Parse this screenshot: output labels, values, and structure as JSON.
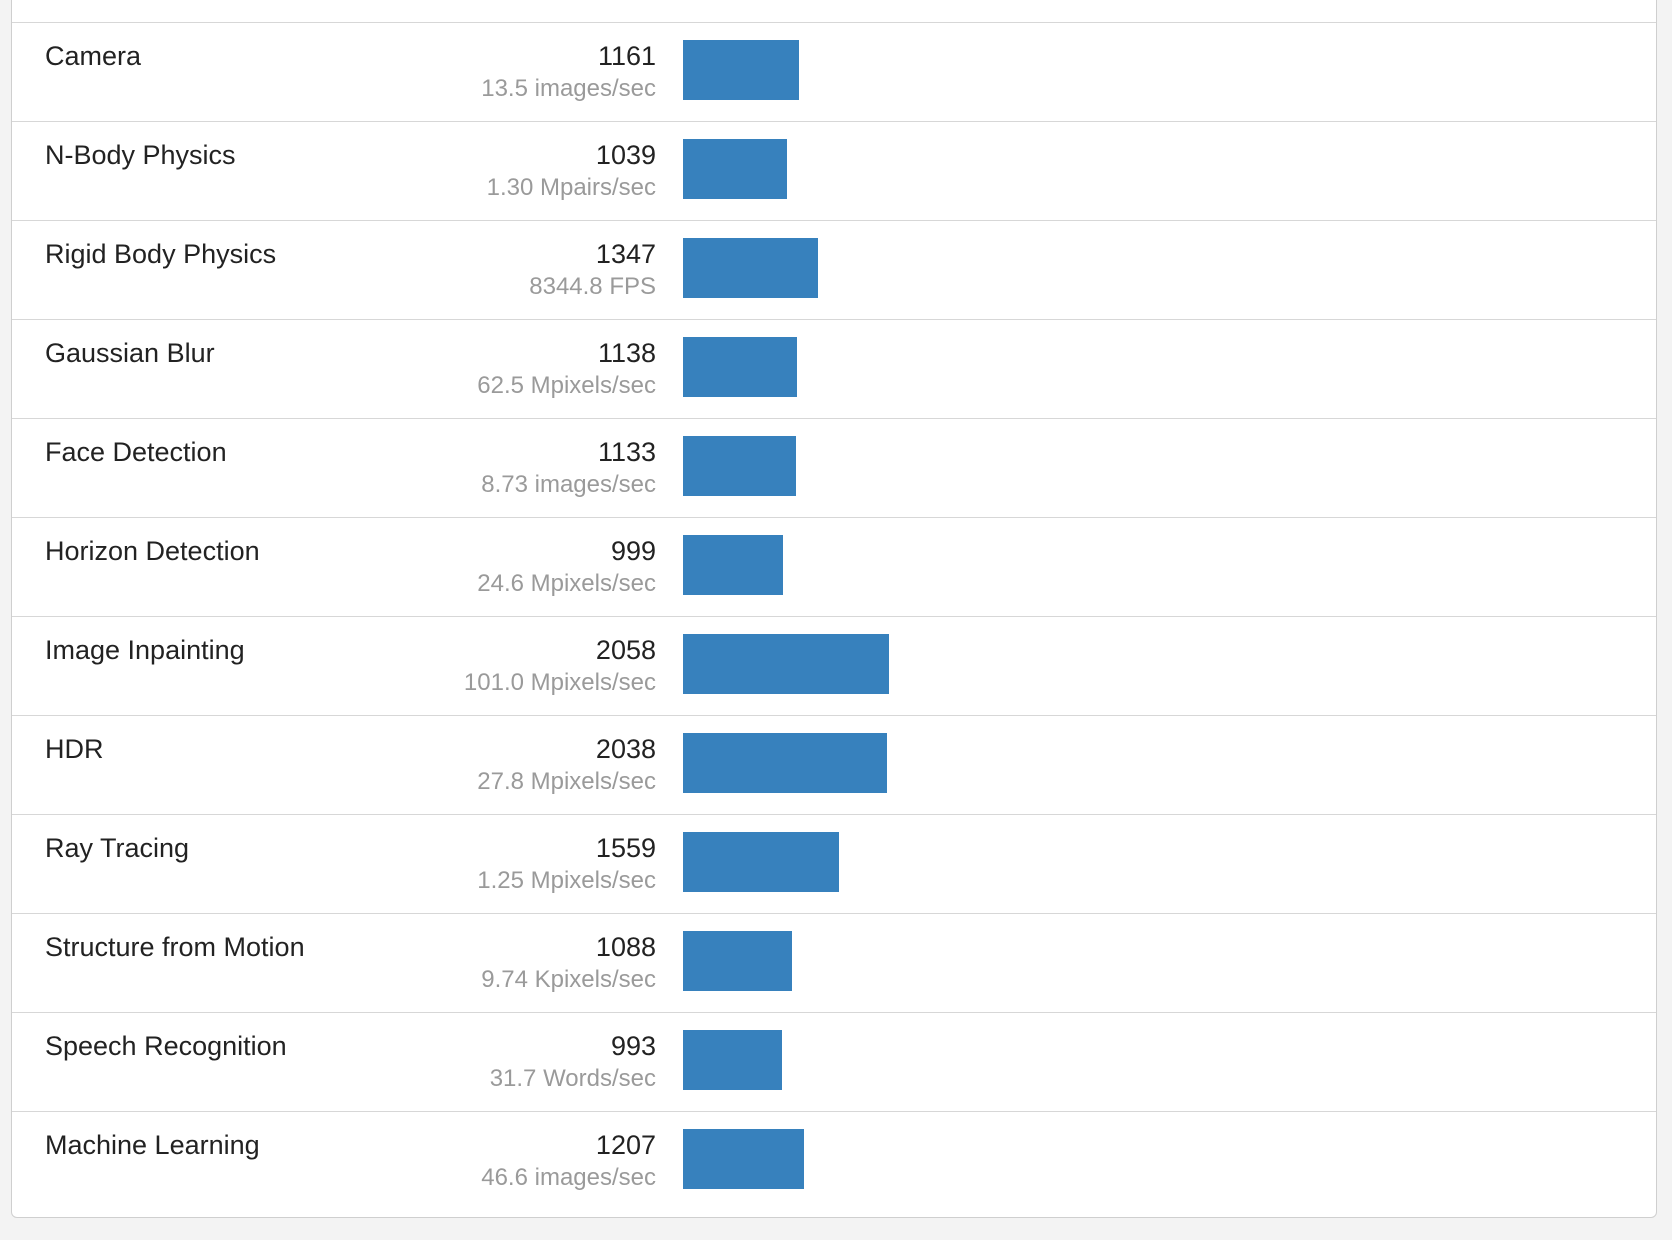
{
  "colors": {
    "bar": "#3781bd",
    "name_text": "#222222",
    "rate_text": "#9a9a9a",
    "divider": "#d7d7d7"
  },
  "scale_max_score": 9000,
  "benchmarks": [
    {
      "name": "Camera",
      "score": 1161,
      "score_label": "1161",
      "rate": "13.5 images/sec"
    },
    {
      "name": "N-Body Physics",
      "score": 1039,
      "score_label": "1039",
      "rate": "1.30 Mpairs/sec"
    },
    {
      "name": "Rigid Body Physics",
      "score": 1347,
      "score_label": "1347",
      "rate": "8344.8 FPS"
    },
    {
      "name": "Gaussian Blur",
      "score": 1138,
      "score_label": "1138",
      "rate": "62.5 Mpixels/sec"
    },
    {
      "name": "Face Detection",
      "score": 1133,
      "score_label": "1133",
      "rate": "8.73 images/sec"
    },
    {
      "name": "Horizon Detection",
      "score": 999,
      "score_label": "999",
      "rate": "24.6 Mpixels/sec"
    },
    {
      "name": "Image Inpainting",
      "score": 2058,
      "score_label": "2058",
      "rate": "101.0 Mpixels/sec"
    },
    {
      "name": "HDR",
      "score": 2038,
      "score_label": "2038",
      "rate": "27.8 Mpixels/sec"
    },
    {
      "name": "Ray Tracing",
      "score": 1559,
      "score_label": "1559",
      "rate": "1.25 Mpixels/sec"
    },
    {
      "name": "Structure from Motion",
      "score": 1088,
      "score_label": "1088",
      "rate": "9.74 Kpixels/sec"
    },
    {
      "name": "Speech Recognition",
      "score": 993,
      "score_label": "993",
      "rate": "31.7 Words/sec"
    },
    {
      "name": "Machine Learning",
      "score": 1207,
      "score_label": "1207",
      "rate": "46.6 images/sec"
    }
  ]
}
